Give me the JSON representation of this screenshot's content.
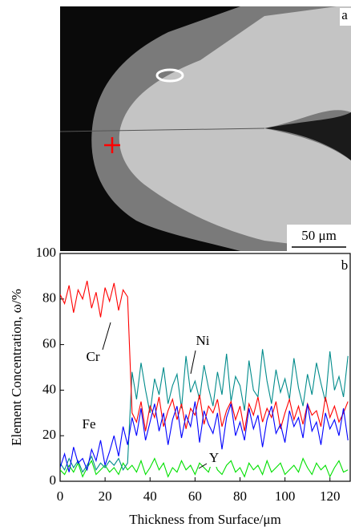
{
  "image": {
    "label": "a",
    "scale_bar": "50 μm"
  },
  "chart_data": {
    "type": "line",
    "panel_label": "b",
    "xlabel": "Thickness from Surface/μm",
    "ylabel": "Element Concentration, ω/%",
    "xlim": [
      0,
      129
    ],
    "ylim": [
      0,
      100
    ],
    "xticks": [
      0,
      20,
      40,
      60,
      80,
      100,
      120
    ],
    "yticks": [
      0,
      20,
      40,
      60,
      80,
      100
    ],
    "x": [
      0,
      2,
      4,
      6,
      8,
      10,
      12,
      14,
      16,
      18,
      20,
      22,
      24,
      26,
      28,
      30,
      32,
      34,
      36,
      38,
      40,
      42,
      44,
      46,
      48,
      50,
      52,
      54,
      56,
      58,
      60,
      62,
      64,
      66,
      68,
      70,
      72,
      74,
      76,
      78,
      80,
      82,
      84,
      86,
      88,
      90,
      92,
      94,
      96,
      98,
      100,
      102,
      104,
      106,
      108,
      110,
      112,
      114,
      116,
      118,
      120,
      122,
      124,
      126,
      128
    ],
    "series": [
      {
        "name": "Y",
        "color": "#00e000",
        "values": [
          5,
          3,
          7,
          4,
          8,
          2,
          6,
          9,
          3,
          5,
          7,
          4,
          6,
          3,
          8,
          5,
          7,
          4,
          9,
          3,
          6,
          10,
          5,
          8,
          2,
          6,
          4,
          9,
          5,
          7,
          3,
          8,
          6,
          4,
          10,
          5,
          3,
          7,
          9,
          4,
          6,
          2,
          8,
          5,
          7,
          3,
          9,
          4,
          6,
          8,
          3,
          5,
          7,
          4,
          10,
          6,
          3,
          8,
          5,
          7,
          2,
          6,
          9,
          4,
          5
        ]
      },
      {
        "name": "Ni",
        "color": "#008b8b",
        "values": [
          8,
          5,
          10,
          6,
          9,
          4,
          7,
          11,
          5,
          8,
          6,
          9,
          7,
          10,
          5,
          8,
          48,
          36,
          52,
          40,
          30,
          45,
          38,
          50,
          34,
          42,
          47,
          32,
          55,
          39,
          44,
          36,
          51,
          41,
          33,
          48,
          38,
          56,
          35,
          46,
          42,
          31,
          53,
          40,
          37,
          58,
          44,
          34,
          49,
          39,
          45,
          36,
          54,
          41,
          33,
          47,
          38,
          52,
          43,
          35,
          57,
          40,
          46,
          37,
          55
        ]
      },
      {
        "name": "Cr",
        "color": "#ff0000",
        "values": [
          82,
          78,
          86,
          74,
          84,
          80,
          88,
          76,
          83,
          72,
          85,
          79,
          87,
          75,
          84,
          81,
          30,
          26,
          35,
          22,
          33,
          28,
          37,
          24,
          31,
          36,
          27,
          34,
          23,
          32,
          29,
          38,
          25,
          33,
          30,
          36,
          24,
          31,
          35,
          27,
          33,
          22,
          34,
          29,
          37,
          26,
          32,
          28,
          35,
          23,
          30,
          36,
          27,
          33,
          25,
          34,
          29,
          31,
          24,
          37,
          28,
          33,
          26,
          30,
          35
        ]
      },
      {
        "name": "Fe",
        "color": "#0000ff",
        "values": [
          6,
          12,
          4,
          15,
          8,
          10,
          5,
          14,
          9,
          18,
          7,
          13,
          20,
          11,
          24,
          16,
          28,
          20,
          32,
          18,
          26,
          34,
          22,
          30,
          16,
          27,
          33,
          19,
          29,
          24,
          35,
          17,
          31,
          25,
          21,
          30,
          14,
          28,
          34,
          20,
          26,
          18,
          32,
          23,
          29,
          15,
          27,
          33,
          21,
          25,
          17,
          31,
          24,
          28,
          19,
          34,
          22,
          26,
          16,
          30,
          23,
          27,
          20,
          32,
          18
        ]
      }
    ]
  }
}
